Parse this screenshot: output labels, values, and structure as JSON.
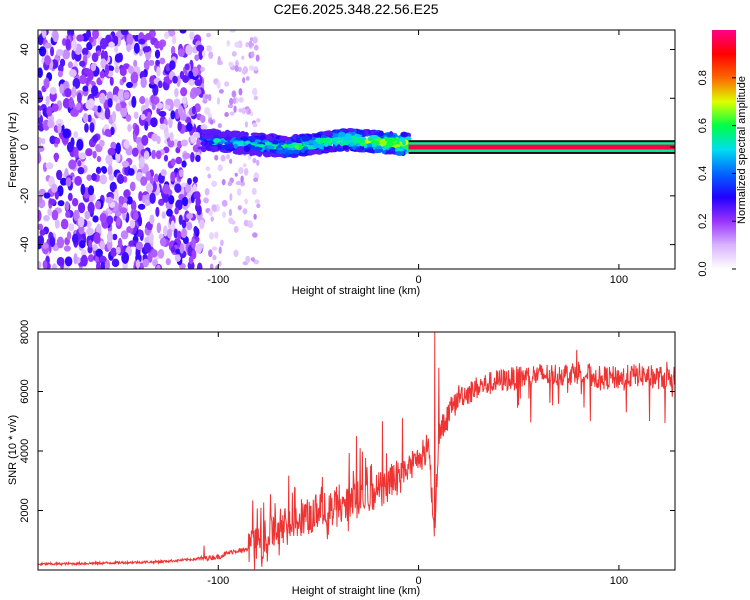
{
  "figure_title": "C2E6.2025.348.22.56.E25",
  "chart_data": [
    {
      "type": "heatmap",
      "xlabel": "Height of straight line (km)",
      "ylabel": "Frequency (Hz)",
      "xlim": [
        -190,
        128
      ],
      "ylim": [
        -50,
        48
      ],
      "xticks": [
        -100,
        0,
        100
      ],
      "yticks": [
        -40,
        -20,
        0,
        20,
        40
      ],
      "xtick_labels": [
        "-100",
        "0",
        "100"
      ],
      "ytick_labels": [
        "-40",
        "-20",
        "0",
        "20",
        "40"
      ],
      "colorbar": {
        "label": "Normalized spectral amplitude",
        "range": [
          0.0,
          1.0
        ],
        "ticks": [
          0.0,
          0.2,
          0.4,
          0.6,
          0.8
        ],
        "tick_labels": [
          "0.0",
          "0.2",
          "0.4",
          "0.6",
          "0.8"
        ],
        "colormap": [
          "#ffffff",
          "#d9b3ff",
          "#9933ff",
          "#2200ff",
          "#0066ff",
          "#00ddee",
          "#00ff44",
          "#ddff00",
          "#ff6600",
          "#ff0000",
          "#ff0088"
        ]
      },
      "regions": [
        {
          "name": "noise",
          "x_range": [
            -190,
            -108
          ],
          "f_range": [
            -50,
            48
          ],
          "amplitude": 0.15
        },
        {
          "name": "sparse",
          "x_range": [
            -108,
            -80
          ],
          "f_range": [
            -50,
            48
          ],
          "amplitude": 0.05
        },
        {
          "name": "signal-band",
          "x_range": [
            -108,
            -5
          ],
          "center_hz": [
            3,
            2,
            1,
            0,
            2,
            3,
            2,
            1
          ],
          "width_hz": 8,
          "amplitude": 0.45
        },
        {
          "name": "tone",
          "x_range": [
            -5,
            128
          ],
          "center_hz": 0,
          "width_hz": 2,
          "amplitude": 0.95
        }
      ],
      "annotations": []
    },
    {
      "type": "line",
      "xlabel": "Height of straight line (km)",
      "ylabel": "SNR (10 * v/v)",
      "xlim": [
        -190,
        128
      ],
      "ylim": [
        0,
        8000
      ],
      "xticks": [
        -100,
        0,
        100
      ],
      "yticks": [
        2000,
        4000,
        6000,
        8000
      ],
      "xtick_labels": [
        "-100",
        "0",
        "100"
      ],
      "ytick_labels": [
        "2000",
        "4000",
        "6000",
        "8000"
      ],
      "series": [
        {
          "name": "SNR",
          "color": "#ee3333",
          "x": [
            -190,
            -170,
            -150,
            -130,
            -115,
            -100,
            -92,
            -85,
            -80,
            -70,
            -60,
            -50,
            -40,
            -30,
            -20,
            -15,
            -10,
            -5,
            0,
            5,
            8,
            10,
            15,
            20,
            25,
            30,
            40,
            50,
            60,
            70,
            80,
            90,
            100,
            110,
            120,
            128
          ],
          "values": [
            200,
            220,
            250,
            280,
            350,
            450,
            650,
            700,
            900,
            1500,
            1800,
            2000,
            2200,
            2500,
            2700,
            3000,
            3200,
            3500,
            3800,
            4300,
            1200,
            4600,
            5300,
            5900,
            6000,
            6200,
            6400,
            6500,
            6600,
            6600,
            6700,
            6500,
            6500,
            6600,
            6500,
            6500
          ],
          "spikes": [
            {
              "x": -107,
              "y": 820
            },
            {
              "x": -84,
              "y": 1100
            },
            {
              "x": -63,
              "y": 2600
            },
            {
              "x": -41,
              "y": 2800
            },
            {
              "x": -31,
              "y": 4500
            },
            {
              "x": -24,
              "y": 3500
            },
            {
              "x": -18,
              "y": 5000
            },
            {
              "x": -8,
              "y": 5100
            },
            {
              "x": -3,
              "y": 4000
            },
            {
              "x": 8,
              "y": 8000
            },
            {
              "x": 10,
              "y": 6800
            },
            {
              "x": 79,
              "y": 7400
            },
            {
              "x": 124,
              "y": 7000
            }
          ]
        }
      ],
      "annotations": []
    }
  ]
}
